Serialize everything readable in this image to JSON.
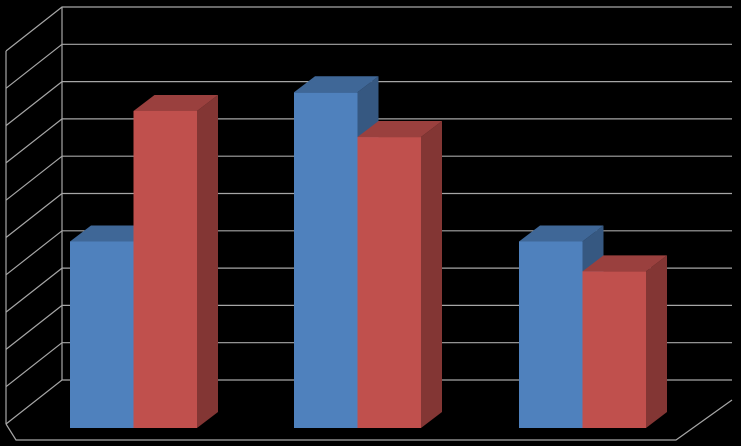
{
  "chart_data": {
    "type": "bar",
    "three_d": true,
    "categories": [
      "",
      "",
      ""
    ],
    "series": [
      {
        "color": "#4F81BD",
        "values": [
          5.0,
          9.0,
          5.0
        ]
      },
      {
        "color": "#C0504D",
        "values": [
          8.5,
          7.8,
          4.2
        ]
      }
    ],
    "ylim": [
      0,
      10
    ],
    "grid": true,
    "gridline_color": "#A6A6A6",
    "background": "#000000",
    "title": "",
    "xlabel": "",
    "ylabel": "",
    "legend": "none"
  }
}
